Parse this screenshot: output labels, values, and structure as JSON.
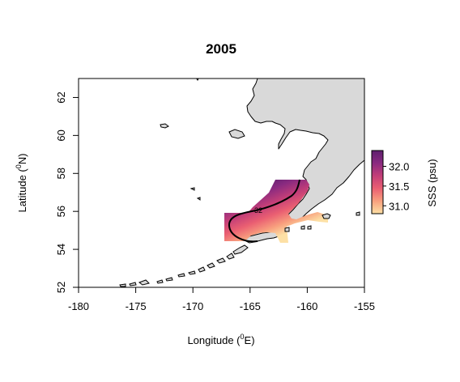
{
  "title": "2005",
  "x_axis": {
    "label_main": "Longitude (",
    "label_sup": "0",
    "label_end": "E)",
    "range": [
      -180,
      -155
    ],
    "ticks": [
      -180,
      -175,
      -170,
      -165,
      -160,
      -155
    ],
    "tick_labels": [
      "-180",
      "-175",
      "-170",
      "-165",
      "-160",
      "-155"
    ]
  },
  "y_axis": {
    "label_main": "Latitude (",
    "label_sup": "0",
    "label_end": "N)",
    "range": [
      52,
      63
    ],
    "ticks": [
      52,
      54,
      56,
      58,
      60,
      62
    ],
    "tick_labels": [
      "52",
      "54",
      "56",
      "58",
      "60",
      "62"
    ]
  },
  "colorbar": {
    "label": "SSS (psu)",
    "range": [
      30.8,
      32.4
    ],
    "ticks": [
      31.0,
      31.5,
      32.0
    ],
    "tick_labels": [
      "31.0",
      "31.5",
      "32.0"
    ],
    "colors": [
      "#fde0a5",
      "#f8a07e",
      "#ea5f72",
      "#c33e78",
      "#8a2a80",
      "#5e1f6e"
    ]
  },
  "colors": {
    "land": "#d9d9d9",
    "coast": "#000000"
  },
  "contour_label": "32",
  "chart_data": {
    "type": "heatmap",
    "title": "2005",
    "xlabel": "Longitude (0E)",
    "ylabel": "Latitude (0N)",
    "xlim": [
      -180,
      -155
    ],
    "ylim": [
      52,
      63
    ],
    "variable": "SSS (psu)",
    "value_range": [
      30.8,
      32.4
    ],
    "data_extent": {
      "lon": [
        -167.3,
        -158.3
      ],
      "lat": [
        54.3,
        57.7
      ]
    },
    "contour_levels": [
      32
    ],
    "grid": false
  }
}
